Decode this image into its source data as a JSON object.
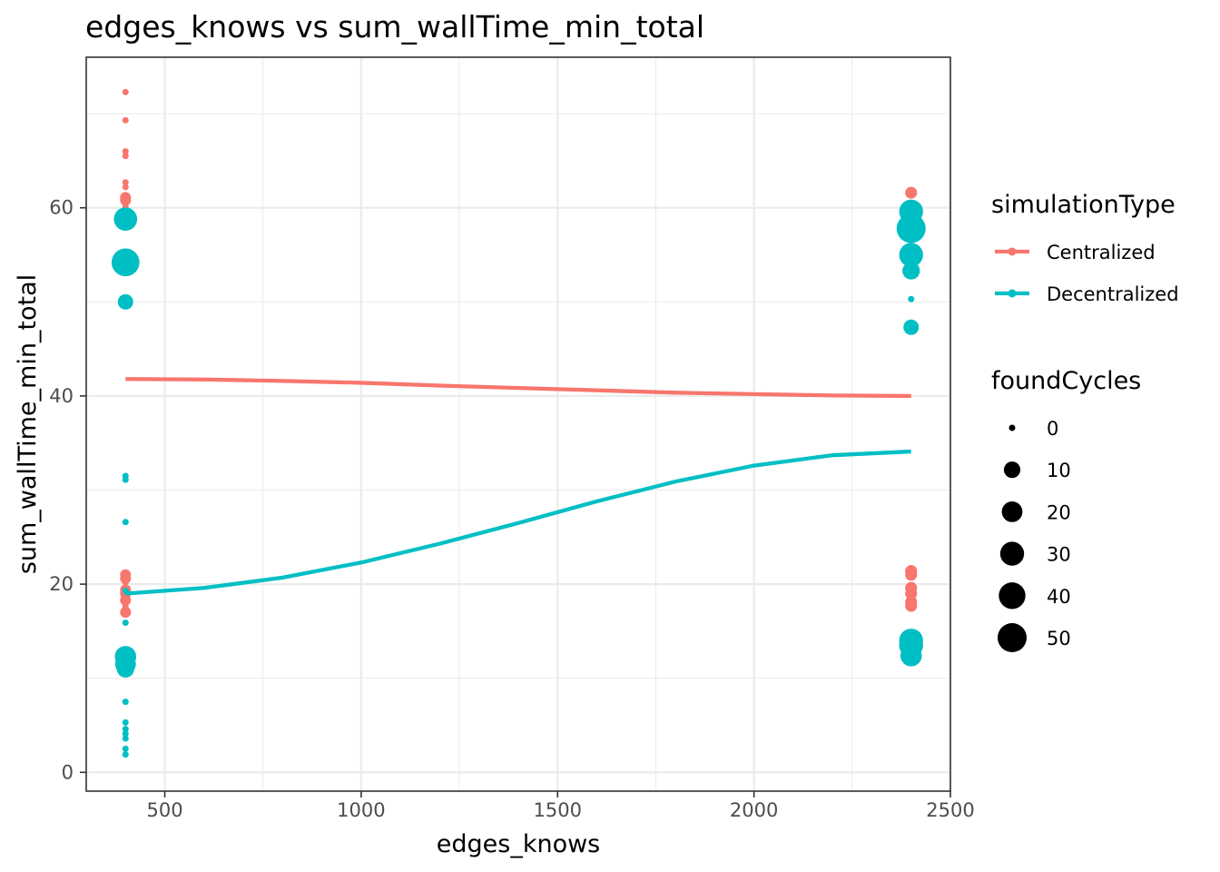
{
  "chart_data": {
    "type": "scatter",
    "title": "edges_knows  vs  sum_wallTime_min_total",
    "xlabel": "edges_knows",
    "ylabel": "sum_wallTime_min_total",
    "xlim": [
      300,
      2500
    ],
    "ylim": [
      -2,
      76
    ],
    "x_ticks": [
      500,
      1000,
      1500,
      2000,
      2500
    ],
    "y_ticks": [
      0,
      20,
      40,
      60
    ],
    "grid": true,
    "legend_position": "right",
    "color_legend": {
      "title": "simulationType",
      "entries": [
        {
          "label": "Centralized",
          "color": "#F8766D"
        },
        {
          "label": "Decentralized",
          "color": "#00BFC4"
        }
      ]
    },
    "size_legend": {
      "title": "foundCycles",
      "entries": [
        0,
        10,
        20,
        30,
        40,
        50
      ]
    },
    "series": [
      {
        "name": "Centralized",
        "color": "#F8766D",
        "points": [
          {
            "x": 400,
            "y": 72.3,
            "s": 0
          },
          {
            "x": 400,
            "y": 69.3,
            "s": 0
          },
          {
            "x": 400,
            "y": 66.0,
            "s": 0
          },
          {
            "x": 400,
            "y": 65.5,
            "s": 0
          },
          {
            "x": 400,
            "y": 62.7,
            "s": 0
          },
          {
            "x": 400,
            "y": 62.2,
            "s": 0
          },
          {
            "x": 400,
            "y": 61.1,
            "s": 2
          },
          {
            "x": 400,
            "y": 60.8,
            "s": 2
          },
          {
            "x": 400,
            "y": 60.1,
            "s": 0
          },
          {
            "x": 400,
            "y": 21.0,
            "s": 2
          },
          {
            "x": 400,
            "y": 20.6,
            "s": 2
          },
          {
            "x": 400,
            "y": 20.2,
            "s": 0
          },
          {
            "x": 400,
            "y": 19.4,
            "s": 2
          },
          {
            "x": 400,
            "y": 19.0,
            "s": 2
          },
          {
            "x": 400,
            "y": 18.3,
            "s": 2
          },
          {
            "x": 400,
            "y": 17.6,
            "s": 0
          },
          {
            "x": 400,
            "y": 17.0,
            "s": 2
          },
          {
            "x": 2400,
            "y": 61.6,
            "s": 3
          },
          {
            "x": 2400,
            "y": 60.2,
            "s": 3
          },
          {
            "x": 2400,
            "y": 21.4,
            "s": 3
          },
          {
            "x": 2400,
            "y": 21.0,
            "s": 3
          },
          {
            "x": 2400,
            "y": 19.6,
            "s": 3
          },
          {
            "x": 2400,
            "y": 19.0,
            "s": 3
          },
          {
            "x": 2400,
            "y": 18.1,
            "s": 3
          },
          {
            "x": 2400,
            "y": 17.7,
            "s": 3
          }
        ],
        "trend": [
          {
            "x": 400,
            "y": 41.8
          },
          {
            "x": 600,
            "y": 41.75
          },
          {
            "x": 800,
            "y": 41.6
          },
          {
            "x": 1000,
            "y": 41.4
          },
          {
            "x": 1200,
            "y": 41.1
          },
          {
            "x": 1400,
            "y": 40.85
          },
          {
            "x": 1600,
            "y": 40.6
          },
          {
            "x": 1800,
            "y": 40.35
          },
          {
            "x": 2000,
            "y": 40.2
          },
          {
            "x": 2200,
            "y": 40.05
          },
          {
            "x": 2400,
            "y": 40.0
          }
        ]
      },
      {
        "name": "Decentralized",
        "color": "#00BFC4",
        "points": [
          {
            "x": 400,
            "y": 58.8,
            "s": 28
          },
          {
            "x": 400,
            "y": 54.2,
            "s": 45
          },
          {
            "x": 400,
            "y": 50.0,
            "s": 8
          },
          {
            "x": 400,
            "y": 31.5,
            "s": 0
          },
          {
            "x": 400,
            "y": 31.1,
            "s": 0
          },
          {
            "x": 400,
            "y": 26.6,
            "s": 0
          },
          {
            "x": 400,
            "y": 19.3,
            "s": 0
          },
          {
            "x": 400,
            "y": 15.9,
            "s": 0
          },
          {
            "x": 400,
            "y": 12.3,
            "s": 22
          },
          {
            "x": 400,
            "y": 11.5,
            "s": 20
          },
          {
            "x": 400,
            "y": 11.0,
            "s": 12
          },
          {
            "x": 400,
            "y": 7.5,
            "s": 0
          },
          {
            "x": 400,
            "y": 5.3,
            "s": 0
          },
          {
            "x": 400,
            "y": 4.6,
            "s": 0
          },
          {
            "x": 400,
            "y": 4.1,
            "s": 0
          },
          {
            "x": 400,
            "y": 3.6,
            "s": 0
          },
          {
            "x": 400,
            "y": 2.5,
            "s": 0
          },
          {
            "x": 400,
            "y": 1.9,
            "s": 0
          },
          {
            "x": 2400,
            "y": 59.6,
            "s": 30
          },
          {
            "x": 2400,
            "y": 57.8,
            "s": 50
          },
          {
            "x": 2400,
            "y": 55.0,
            "s": 30
          },
          {
            "x": 2400,
            "y": 53.3,
            "s": 12
          },
          {
            "x": 2400,
            "y": 50.3,
            "s": 0
          },
          {
            "x": 2400,
            "y": 47.3,
            "s": 8
          },
          {
            "x": 2400,
            "y": 14.0,
            "s": 30
          },
          {
            "x": 2400,
            "y": 13.5,
            "s": 30
          },
          {
            "x": 2400,
            "y": 12.4,
            "s": 22
          }
        ],
        "trend": [
          {
            "x": 400,
            "y": 19.0
          },
          {
            "x": 600,
            "y": 19.6
          },
          {
            "x": 800,
            "y": 20.7
          },
          {
            "x": 1000,
            "y": 22.3
          },
          {
            "x": 1200,
            "y": 24.3
          },
          {
            "x": 1400,
            "y": 26.5
          },
          {
            "x": 1600,
            "y": 28.8
          },
          {
            "x": 1800,
            "y": 30.9
          },
          {
            "x": 2000,
            "y": 32.6
          },
          {
            "x": 2200,
            "y": 33.7
          },
          {
            "x": 2400,
            "y": 34.1
          }
        ]
      }
    ]
  }
}
